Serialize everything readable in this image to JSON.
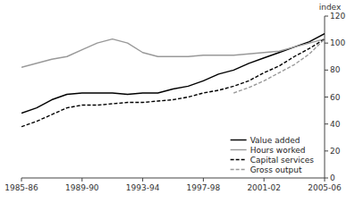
{
  "chart_data": {
    "type": "line",
    "y_label": "index",
    "categories": [
      "1985-86",
      null,
      null,
      null,
      "1989-90",
      null,
      null,
      null,
      "1993-94",
      null,
      null,
      null,
      "1997-98",
      null,
      null,
      null,
      "2001-02",
      null,
      null,
      null,
      "2005-06"
    ],
    "series": [
      {
        "name": "Value added",
        "color": "#000000",
        "line_style": "solid",
        "values": [
          48,
          52,
          58,
          62,
          63,
          63,
          63,
          62,
          63,
          63,
          66,
          68,
          72,
          77,
          80,
          85,
          89,
          93,
          97,
          101,
          107
        ]
      },
      {
        "name": "Hours worked",
        "color": "#999999",
        "line_style": "solid",
        "values": [
          82,
          85,
          88,
          90,
          95,
          100,
          103,
          100,
          93,
          90,
          90,
          90,
          91,
          91,
          91,
          92,
          93,
          94,
          97,
          100,
          103
        ]
      },
      {
        "name": "Capital services",
        "color": "#000000",
        "line_style": "dashed",
        "values": [
          38,
          42,
          47,
          52,
          54,
          54,
          55,
          56,
          56,
          57,
          58,
          60,
          63,
          65,
          68,
          72,
          78,
          83,
          90,
          96,
          103
        ]
      },
      {
        "name": "Gross output",
        "color": "#999999",
        "line_style": "dashed",
        "values": [
          null,
          null,
          null,
          null,
          null,
          null,
          null,
          null,
          null,
          null,
          null,
          null,
          null,
          null,
          63,
          67,
          72,
          78,
          84,
          92,
          103
        ]
      }
    ],
    "ylim": [
      0,
      120
    ],
    "yticks": [
      0,
      20,
      40,
      60,
      80,
      100,
      120
    ],
    "grid": false,
    "legend": "lower right"
  }
}
